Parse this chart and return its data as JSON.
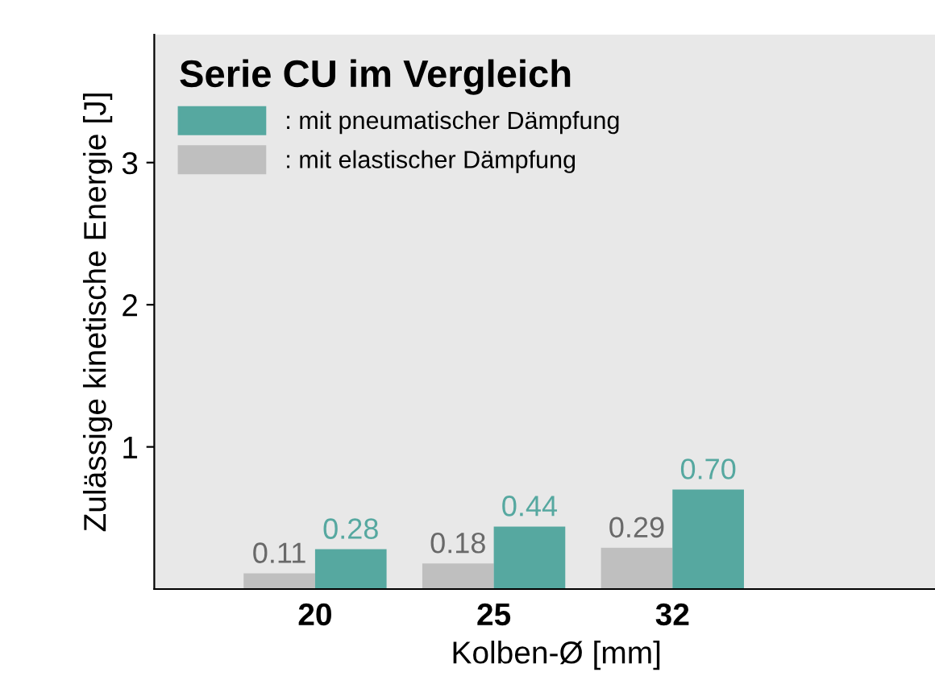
{
  "chart_data": {
    "type": "bar",
    "xlabel": "Kolben-Ø [mm]",
    "ylabel": "Zulässige kinetische Energie [J]",
    "legend_title": "Serie CU im Vergleich",
    "categories": [
      "20",
      "25",
      "32"
    ],
    "series": [
      {
        "name": ": mit elastischer Dämpfung",
        "color": "#bfbfbf",
        "values": [
          0.11,
          0.18,
          0.29
        ],
        "value_labels": [
          "0.11",
          "0.18",
          "0.29"
        ]
      },
      {
        "name": ": mit pneumatischer Dämpfung",
        "color": "#56a8a0",
        "values": [
          0.28,
          0.44,
          0.7
        ],
        "value_labels": [
          "0.28",
          "0.44",
          "0.70"
        ]
      }
    ],
    "ylim": [
      0,
      3.9
    ],
    "yticks": [
      1,
      2,
      3
    ],
    "grid": false,
    "legend": "top left"
  }
}
